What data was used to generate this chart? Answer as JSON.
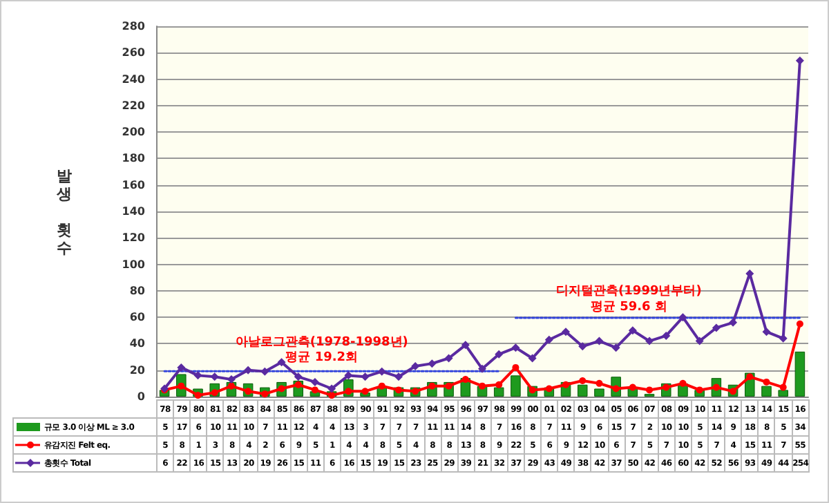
{
  "chart_data": {
    "type": "bar",
    "ylabel": "발생 횟수",
    "categories": [
      "78",
      "79",
      "80",
      "81",
      "82",
      "83",
      "84",
      "85",
      "86",
      "87",
      "88",
      "89",
      "90",
      "91",
      "92",
      "93",
      "94",
      "95",
      "96",
      "97",
      "98",
      "99",
      "00",
      "01",
      "02",
      "03",
      "04",
      "05",
      "06",
      "07",
      "08",
      "09",
      "10",
      "11",
      "12",
      "13",
      "14",
      "15",
      "16"
    ],
    "series": [
      {
        "name": "규모 3.0 이상 ML ≥ 3.0",
        "color": "#1e9a1e",
        "values": [
          5,
          17,
          6,
          10,
          11,
          10,
          7,
          11,
          12,
          4,
          4,
          13,
          3,
          7,
          7,
          7,
          11,
          11,
          14,
          8,
          7,
          16,
          8,
          7,
          11,
          9,
          6,
          15,
          7,
          2,
          10,
          10,
          5,
          14,
          9,
          18,
          8,
          5,
          34
        ],
        "value_labels": [
          "5",
          "17",
          "6",
          "10",
          "11",
          "10",
          "7",
          "11",
          "12",
          "4",
          "4",
          "13",
          "3",
          "7",
          "7",
          "7",
          "11",
          "11",
          "14",
          "8",
          "7",
          "16",
          "8",
          "7",
          "11",
          "9",
          "6",
          "15",
          "7",
          "2",
          "10",
          "10",
          "5",
          "14",
          "9",
          "18",
          "8",
          "5",
          "34"
        ]
      },
      {
        "name": "유감지진 Felt eq.",
        "type": "line",
        "color": "#ff0000",
        "marker": "circle",
        "values": [
          5,
          8,
          1,
          3,
          8,
          4,
          2,
          6,
          9,
          5,
          1,
          4,
          4,
          8,
          5,
          4,
          8,
          8,
          13,
          8,
          9,
          22,
          5,
          6,
          9,
          12,
          10,
          6,
          7,
          5,
          7,
          10,
          5,
          7,
          4,
          15,
          11,
          7,
          55
        ],
        "value_labels": [
          "5",
          "8",
          "1",
          "3",
          "8",
          "4",
          "2",
          "6",
          "9",
          "5",
          "1",
          "4",
          "4",
          "8",
          "5",
          "4",
          "8",
          "8",
          "13",
          "8",
          "9",
          "22",
          "5",
          "6",
          "9",
          "12",
          "10",
          "6",
          "7",
          "5",
          "7",
          "10",
          "5",
          "7",
          "4",
          "15",
          "11",
          "7",
          "55"
        ]
      },
      {
        "name": "총횟수 Total",
        "type": "line",
        "color": "#5a2aa0",
        "marker": "diamond",
        "values": [
          6,
          22,
          16,
          15,
          13,
          20,
          19,
          26,
          15,
          11,
          6,
          16,
          15,
          19,
          15,
          23,
          25,
          29,
          39,
          21,
          32,
          37,
          29,
          43,
          49,
          38,
          42,
          37,
          50,
          42,
          46,
          60,
          42,
          52,
          56,
          93,
          49,
          44,
          254
        ],
        "value_labels": [
          "6",
          "22",
          "16",
          "15",
          "13",
          "20",
          "19",
          "26",
          "15",
          "11",
          "6",
          "16",
          "15",
          "19",
          "15",
          "23",
          "25",
          "29",
          "39",
          "21",
          "32",
          "37",
          "29",
          "43",
          "49",
          "38",
          "42",
          "37",
          "50",
          "42",
          "46",
          "60",
          "42",
          "52",
          "56",
          "93",
          "49",
          "44",
          "254"
        ]
      },
      {
        "type": "line",
        "color": "#3344dd",
        "marker": "none",
        "line_style": "dotted",
        "x": [
          "78",
          "98"
        ],
        "values": [
          19.2,
          19.2
        ]
      },
      {
        "type": "line",
        "color": "#3344dd",
        "marker": "none",
        "line_style": "dotted",
        "x": [
          "99",
          "16"
        ],
        "values": [
          59.6,
          59.6
        ]
      }
    ],
    "annotations": [
      "아날로그관측(1978-1998년)",
      "평균 19.2회",
      "디지털관측(1999년부터)",
      "평균 59.6 회"
    ],
    "ylim": [
      0,
      280
    ],
    "yticks": [
      0,
      20,
      40,
      60,
      80,
      100,
      120,
      140,
      160,
      180,
      200,
      220,
      240,
      260,
      280
    ],
    "grid": "y",
    "legend": "bottom left"
  }
}
